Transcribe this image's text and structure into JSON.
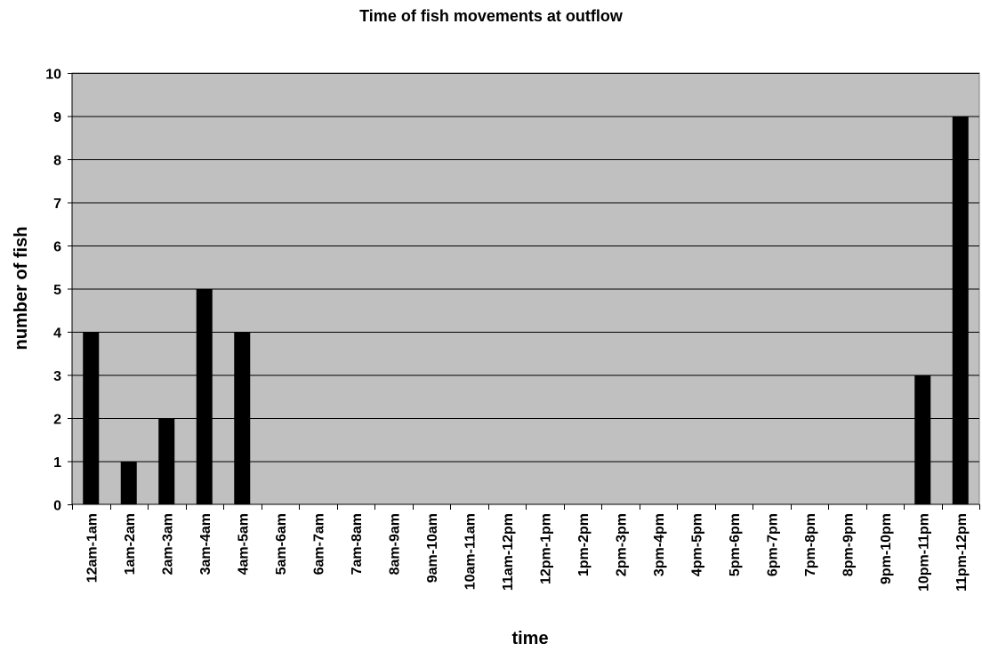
{
  "chart_data": {
    "type": "bar",
    "title": "Time of fish movements at outflow",
    "xlabel": "time",
    "ylabel": "number of fish",
    "ylim": [
      0,
      10
    ],
    "yticks": [
      0,
      1,
      2,
      3,
      4,
      5,
      6,
      7,
      8,
      9,
      10
    ],
    "grid": true,
    "legend": "none",
    "categories": [
      "12am-1am",
      "1am-2am",
      "2am-3am",
      "3am-4am",
      "4am-5am",
      "5am-6am",
      "6am-7am",
      "7am-8am",
      "8am-9am",
      "9am-10am",
      "10am-11am",
      "11am-12pm",
      "12pm-1pm",
      "1pm-2pm",
      "2pm-3pm",
      "3pm-4pm",
      "4pm-5pm",
      "5pm-6pm",
      "6pm-7pm",
      "7pm-8pm",
      "8pm-9pm",
      "9pm-10pm",
      "10pm-11pm",
      "11pm-12pm"
    ],
    "values": [
      4,
      1,
      2,
      5,
      4,
      0,
      0,
      0,
      0,
      0,
      0,
      0,
      0,
      0,
      0,
      0,
      0,
      0,
      0,
      0,
      0,
      0,
      3,
      9
    ],
    "colors": {
      "plot_background": "#c0c0c0",
      "bar": "#000000",
      "gridline": "#000000",
      "axis": "#000000"
    }
  }
}
